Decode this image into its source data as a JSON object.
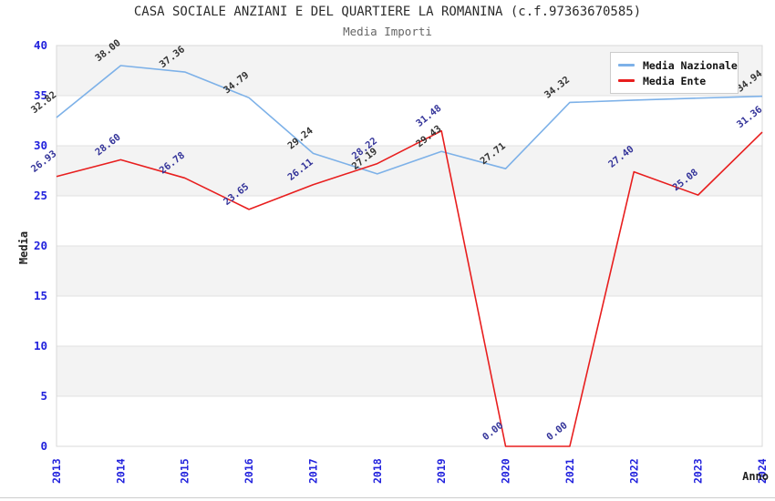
{
  "header": {
    "title": "CASA SOCIALE ANZIANI E DEL QUARTIERE LA ROMANINA (c.f.97363670585)",
    "subtitle": "Media Importi"
  },
  "chart_data": {
    "type": "line",
    "categories": [
      "2013",
      "2014",
      "2015",
      "2016",
      "2017",
      "2018",
      "2019",
      "2020",
      "2021",
      "2022",
      "2023",
      "2024"
    ],
    "series": [
      {
        "name": "Media Nazionale",
        "color": "#7db1e8",
        "label_color": "#333333",
        "values": [
          32.82,
          38.0,
          37.36,
          34.79,
          29.24,
          27.19,
          29.43,
          27.71,
          34.32,
          34.55,
          34.75,
          34.94
        ],
        "point_labels": [
          "32.82",
          "38.00",
          "37.36",
          "34.79",
          "29.24",
          "27.19",
          "29.43",
          "27.71",
          "34.32",
          "",
          "",
          "34.94"
        ]
      },
      {
        "name": "Media Ente",
        "color": "#e81e1e",
        "label_color": "#333399",
        "values": [
          26.93,
          28.6,
          26.78,
          23.65,
          26.11,
          28.22,
          31.48,
          0.0,
          0.0,
          27.4,
          25.08,
          31.36
        ],
        "point_labels": [
          "26.93",
          "28.60",
          "26.78",
          "23.65",
          "26.11",
          "28.22",
          "31.48",
          "0.00",
          "0.00",
          "27.40",
          "25.08",
          "31.36"
        ]
      }
    ],
    "xlabel": "Anno",
    "ylabel": "Media",
    "ylim": [
      0,
      40
    ],
    "y_ticks": [
      0,
      5,
      10,
      15,
      20,
      25,
      30,
      35,
      40
    ],
    "grid": "horizontal gridlines with alternating shaded bands",
    "gray_band_ranges": [
      [
        35,
        40
      ],
      [
        25,
        30
      ],
      [
        15,
        20
      ],
      [
        5,
        10
      ]
    ],
    "band_color": "#f3f3f3",
    "gridline_color": "#e2e2e2",
    "axis_line_color": "#b0b0b0",
    "plot_border_color": "#d8d8d8",
    "tick_label_color": "#2222dd",
    "legend_position": "top-right"
  }
}
